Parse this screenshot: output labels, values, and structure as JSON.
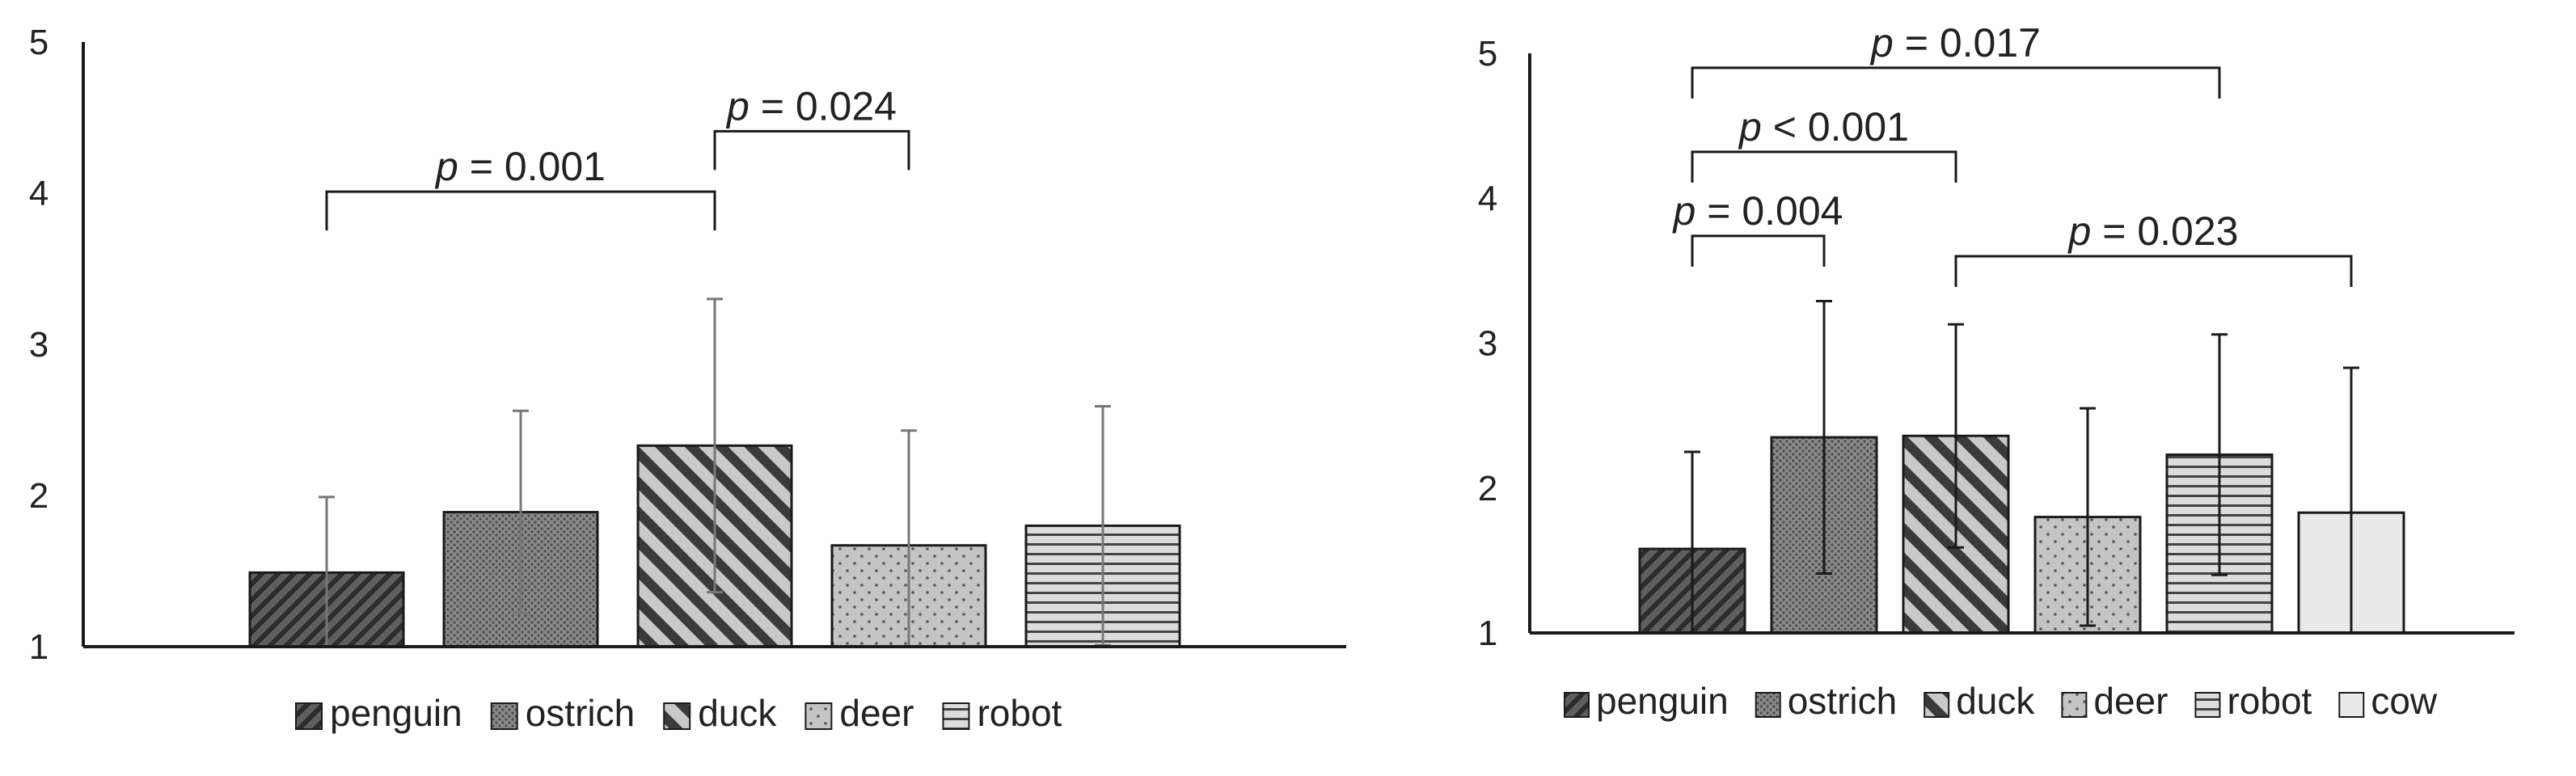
{
  "chart_data": [
    {
      "type": "bar",
      "title": "",
      "xlabel": "",
      "ylabel": "",
      "ylim": [
        1,
        5
      ],
      "yticks": [
        "1",
        "2",
        "3",
        "4",
        "5"
      ],
      "grid": false,
      "legend_position": "bottom",
      "categories": [
        "penguin",
        "ostrich",
        "duck",
        "deer",
        "robot"
      ],
      "values": [
        1.49,
        1.89,
        2.33,
        1.67,
        1.8
      ],
      "error": [
        0.5,
        0.67,
        0.97,
        0.76,
        0.79
      ],
      "patterns": [
        "diag-dark",
        "dots-dark",
        "diag-wide",
        "dots-light",
        "hlines"
      ],
      "annotations": [
        {
          "from": 0,
          "to": 2,
          "p_label": "p",
          "p_rest": " = 0.001",
          "level": 4.01
        },
        {
          "from": 2,
          "to": 3,
          "p_label": "p",
          "p_rest": " = 0.024",
          "level": 4.41
        }
      ]
    },
    {
      "type": "bar",
      "title": "",
      "xlabel": "",
      "ylabel": "",
      "ylim": [
        1,
        5
      ],
      "yticks": [
        "1",
        "2",
        "3",
        "4",
        "5"
      ],
      "grid": false,
      "legend_position": "bottom",
      "categories": [
        "penguin",
        "ostrich",
        "duck",
        "deer",
        "robot",
        "cow"
      ],
      "values": [
        1.58,
        2.35,
        2.36,
        1.8,
        2.23,
        1.83
      ],
      "error": [
        0.67,
        0.94,
        0.77,
        0.75,
        0.83,
        1.0
      ],
      "patterns": [
        "diag-dark",
        "dots-dark",
        "diag-wide",
        "dots-light",
        "hlines",
        "solid-light"
      ],
      "annotations": [
        {
          "from": 0,
          "to": 4,
          "p_label": "p",
          "p_rest": " = 0.017",
          "level": 4.9
        },
        {
          "from": 0,
          "to": 2,
          "p_label": "p",
          "p_rest": " < 0.001",
          "level": 4.32
        },
        {
          "from": 0,
          "to": 1,
          "p_label": "p",
          "p_rest": " = 0.004",
          "level": 3.74
        },
        {
          "from": 2,
          "to": 5,
          "p_label": "p",
          "p_rest": " = 0.023",
          "level": 3.6
        }
      ]
    }
  ],
  "colors": {
    "axis": "#1a1a1a",
    "bar_stroke": "#1a1a1a",
    "error_bar_left": "#777777",
    "error_bar_right": "#1a1a1a",
    "fill_dark": "#5f5f5f",
    "fill_medium": "#8a8a8a",
    "fill_light": "#c4c4c4",
    "fill_lighter": "#dcdcdc",
    "fill_cow": "#e9e9e9"
  }
}
